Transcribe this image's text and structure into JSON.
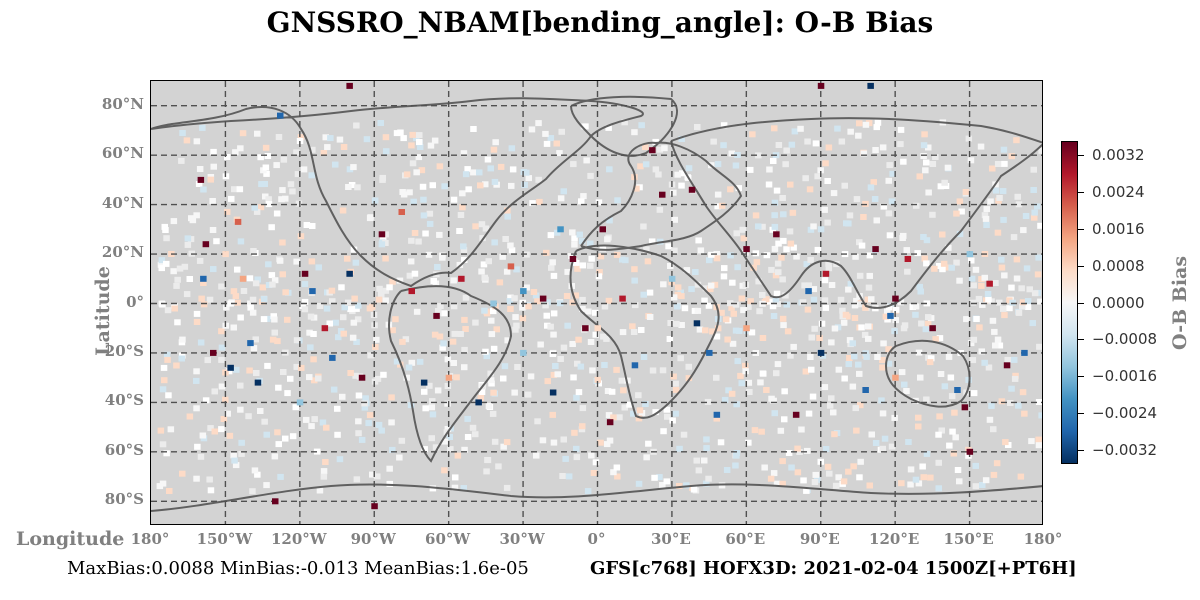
{
  "title": "GNSSRO_NBAM[bending_angle]: O-B Bias",
  "ylabel": "Latitude",
  "xlabel": "Longitude",
  "colorbar_label": "O-B Bias",
  "lat_ticks": [
    "80°N",
    "60°N",
    "40°N",
    "20°N",
    "0°",
    "20°S",
    "40°S",
    "60°S",
    "80°S"
  ],
  "lon_ticks": [
    "180°",
    "150°W",
    "120°W",
    "90°W",
    "60°W",
    "30°W",
    "0°",
    "30°E",
    "60°E",
    "90°E",
    "120°E",
    "150°E",
    "180°"
  ],
  "colorbar_ticks": [
    "0.0032",
    "0.0024",
    "0.0016",
    "0.0008",
    "0.0000",
    "−0.0008",
    "−0.0016",
    "−0.0024",
    "−0.0032"
  ],
  "footer_stats": "MaxBias:0.0088 MinBias:-0.013 MeanBias:1.6e-05",
  "footer_run": "GFS[c768] HOFX3D: 2021-02-04 1500Z[+PT6H]",
  "colors": {
    "background": "#d3d3d3",
    "grid": "#505050",
    "coast": "#606060",
    "cmap": [
      "#67001f",
      "#b2182b",
      "#d6604d",
      "#f4a582",
      "#fddbc7",
      "#f7f7f7",
      "#d1e5f0",
      "#92c5de",
      "#4393c3",
      "#2166ac",
      "#053061"
    ]
  },
  "chart_data": {
    "type": "heatmap",
    "title": "GNSSRO_NBAM[bending_angle]: O-B Bias",
    "xlabel": "Longitude",
    "ylabel": "Latitude",
    "xlim": [
      -180,
      180
    ],
    "ylim": [
      -90,
      90
    ],
    "colorbar_range": [
      -0.0035,
      0.0035
    ],
    "grid": true,
    "legend": "right",
    "stats": {
      "max_bias": 0.0088,
      "min_bias": -0.013,
      "mean_bias": 1.6e-05
    },
    "points": [
      [
        -128,
        76,
        -0.0028
      ],
      [
        -160,
        50,
        0.0034
      ],
      [
        -158,
        24,
        0.0032
      ],
      [
        -159,
        10,
        -0.0028
      ],
      [
        -155,
        -20,
        0.0034
      ],
      [
        -148,
        -26,
        -0.0032
      ],
      [
        -145,
        33,
        0.0018
      ],
      [
        -143,
        10,
        0.0016
      ],
      [
        -140,
        -16,
        -0.003
      ],
      [
        -137,
        -32,
        -0.0032
      ],
      [
        -118,
        12,
        0.0034
      ],
      [
        -115,
        5,
        -0.0028
      ],
      [
        -110,
        -10,
        0.003
      ],
      [
        -107,
        -22,
        -0.003
      ],
      [
        -100,
        12,
        -0.0032
      ],
      [
        -98,
        2,
        0.001
      ],
      [
        -95,
        -30,
        0.0034
      ],
      [
        -87,
        28,
        0.0034
      ],
      [
        -79,
        37,
        0.0018
      ],
      [
        -75,
        5,
        0.003
      ],
      [
        -70,
        -32,
        -0.0032
      ],
      [
        -65,
        -5,
        0.0032
      ],
      [
        -55,
        10,
        0.0028
      ],
      [
        -48,
        -40,
        -0.0032
      ],
      [
        -42,
        0,
        -0.0016
      ],
      [
        -35,
        15,
        0.0024
      ],
      [
        -30,
        5,
        -0.002
      ],
      [
        -22,
        2,
        0.0032
      ],
      [
        -18,
        -36,
        -0.0032
      ],
      [
        -15,
        30,
        -0.0024
      ],
      [
        -10,
        18,
        0.0034
      ],
      [
        -5,
        -10,
        0.0034
      ],
      [
        2,
        30,
        0.0034
      ],
      [
        5,
        -48,
        0.0034
      ],
      [
        10,
        2,
        0.0028
      ],
      [
        15,
        -25,
        -0.0028
      ],
      [
        22,
        62,
        0.0034
      ],
      [
        26,
        44,
        0.0034
      ],
      [
        38,
        46,
        0.0032
      ],
      [
        40,
        -8,
        -0.0032
      ],
      [
        45,
        -20,
        -0.003
      ],
      [
        48,
        -45,
        -0.0028
      ],
      [
        60,
        22,
        0.0032
      ],
      [
        72,
        28,
        0.0034
      ],
      [
        80,
        -45,
        0.0034
      ],
      [
        85,
        5,
        -0.003
      ],
      [
        90,
        -20,
        -0.0032
      ],
      [
        92,
        12,
        0.0028
      ],
      [
        108,
        -35,
        -0.003
      ],
      [
        112,
        22,
        0.0034
      ],
      [
        118,
        -5,
        -0.003
      ],
      [
        120,
        2,
        0.0034
      ],
      [
        125,
        18,
        0.003
      ],
      [
        135,
        -10,
        0.0032
      ],
      [
        145,
        -35,
        -0.003
      ],
      [
        148,
        -42,
        0.0034
      ],
      [
        150,
        -60,
        0.0034
      ],
      [
        158,
        8,
        0.003
      ],
      [
        165,
        -25,
        0.0034
      ],
      [
        172,
        -20,
        -0.003
      ],
      [
        -100,
        88,
        0.0034
      ],
      [
        90,
        88,
        0.0034
      ],
      [
        110,
        88,
        -0.0032
      ],
      [
        -130,
        -80,
        0.0034
      ],
      [
        -90,
        -82,
        0.0034
      ],
      [
        -60,
        -30,
        0.0012
      ],
      [
        -30,
        -20,
        -0.0012
      ],
      [
        0,
        -10,
        0.001
      ],
      [
        30,
        10,
        -0.0014
      ],
      [
        60,
        -10,
        0.0012
      ],
      [
        90,
        30,
        -0.001
      ],
      [
        120,
        -30,
        0.0012
      ],
      [
        150,
        20,
        -0.0012
      ],
      [
        -150,
        20,
        0.001
      ],
      [
        -120,
        -40,
        -0.0012
      ]
    ]
  }
}
